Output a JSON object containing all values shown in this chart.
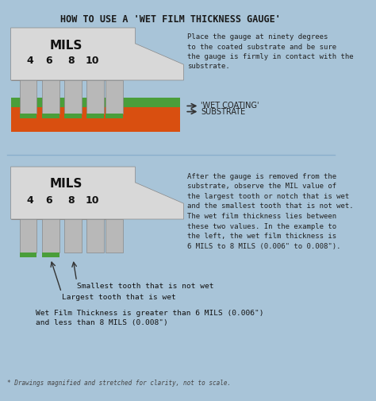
{
  "title": "HOW TO USE A 'WET FILM THICKNESS GAUGE'",
  "bg_color": "#a8c4d8",
  "gauge_color_light": "#d0d0d0",
  "gauge_color_dark": "#909090",
  "gauge_color_mid": "#b8b8b8",
  "green_color": "#4a9e3a",
  "orange_color": "#d94f10",
  "text_color": "#333333",
  "dark_text": "#1a1a1a",
  "mils_label": "MILS",
  "tick_labels": [
    "4",
    "6",
    "8",
    "10"
  ],
  "top_desc": "Place the gauge at ninety degrees\nto the coated substrate and be sure\nthe gauge is firmly in contact with the\nsubstrate.",
  "wet_coating_label": "'WET COATING'",
  "substrate_label": "SUBSTRATE",
  "bottom_desc": "After the gauge is removed from the\nsubstrate, observe the MIL value of\nthe largest tooth or notch that is wet\nand the smallest tooth that is not wet.\nThe wet film thickness lies between\nthese two values. In the example to\nthe left, the wet film thickness is\n6 MILS to 8 MILS (0.006\" to 0.008\").",
  "annotation1": "Smallest tooth that is not wet",
  "annotation2": "Largest tooth that is wet",
  "annotation3": "Wet Film Thickness is greater than 6 MILS (0.006\")\nand less than 8 MILS (0.008\")",
  "footnote": "* Drawings magnified and stretched for clarity, not to scale."
}
